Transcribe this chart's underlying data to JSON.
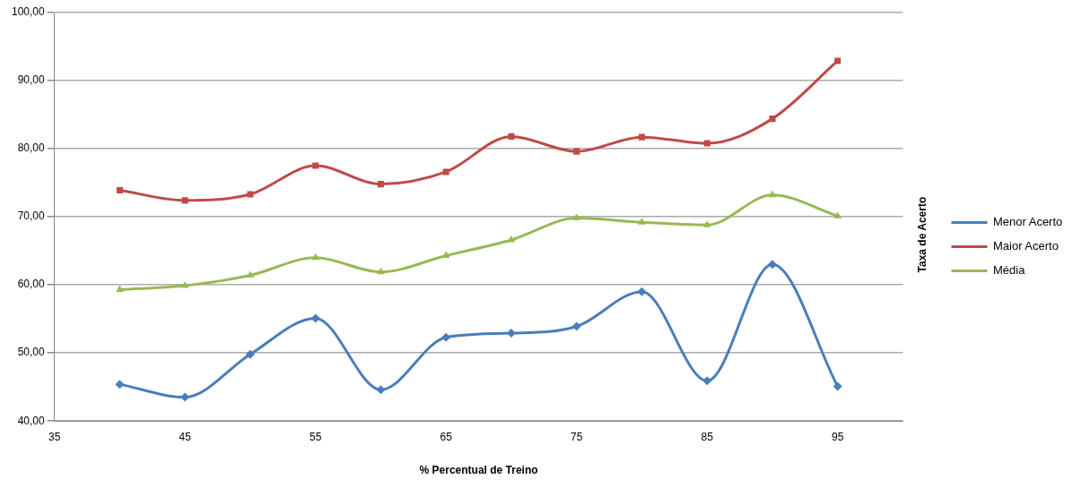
{
  "chart_data": {
    "type": "line",
    "xlabel": "% Percentual de Treino",
    "ylabel": "Taxa de Acerto",
    "x": [
      40,
      45,
      50,
      55,
      60,
      65,
      70,
      75,
      80,
      85,
      90,
      95
    ],
    "series": [
      {
        "name": "Menor Acerto",
        "color": "#4a7ebb",
        "marker": "diamond",
        "values": [
          45.4,
          43.5,
          49.8,
          55.1,
          44.6,
          52.3,
          52.9,
          53.9,
          59.0,
          45.9,
          63.0,
          45.1
        ]
      },
      {
        "name": "Maior Acerto",
        "color": "#be4b48",
        "marker": "square",
        "values": [
          73.9,
          72.4,
          73.3,
          77.5,
          74.8,
          76.6,
          81.8,
          79.6,
          81.7,
          80.8,
          84.4,
          92.9
        ]
      },
      {
        "name": "Média",
        "color": "#98b954",
        "marker": "triangle",
        "values": [
          59.3,
          59.9,
          61.4,
          64.0,
          61.9,
          64.3,
          66.6,
          69.8,
          69.2,
          68.8,
          73.2,
          70.1
        ]
      }
    ],
    "xlim": [
      35,
      100
    ],
    "xticks": [
      35,
      45,
      55,
      65,
      75,
      85,
      95
    ],
    "ylim": [
      40,
      100
    ],
    "yticks": [
      {
        "value": 40,
        "label": "40,00"
      },
      {
        "value": 50,
        "label": "50,00"
      },
      {
        "value": 60,
        "label": "60,00"
      },
      {
        "value": 70,
        "label": "70,00"
      },
      {
        "value": 80,
        "label": "80,00"
      },
      {
        "value": 90,
        "label": "90,00"
      },
      {
        "value": 100,
        "label": "100,00"
      }
    ],
    "grid": "y",
    "legend": "right",
    "line_style": "solid"
  }
}
